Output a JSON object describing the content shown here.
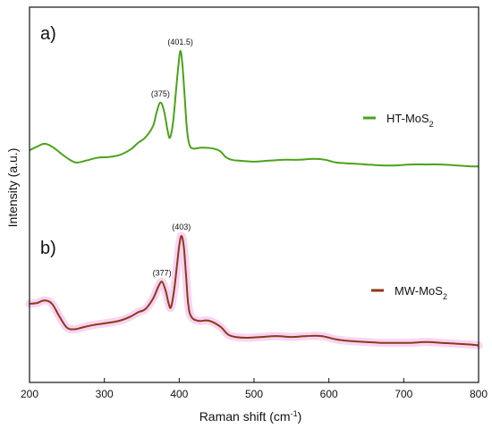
{
  "chart_data": {
    "type": "line",
    "xlabel": "Raman shift (cm",
    "xlabel_sup": "-1",
    "xlabel_close": ")",
    "ylabel": "Intensity (a.u.)",
    "xlim": [
      200,
      800
    ],
    "x_ticks": [
      "200",
      "300",
      "400",
      "500",
      "600",
      "700",
      "800"
    ],
    "y_ticks_labeled": false,
    "panels": [
      {
        "label": "a)",
        "legend_main": "HT-MoS",
        "legend_sub": "2",
        "color": "#4aa31a",
        "shadow": false,
        "peak_labels": [
          {
            "text": "(375)",
            "x": 375
          },
          {
            "text": "(401.5)",
            "x": 401.5
          }
        ],
        "series": {
          "name": "HT-MoS2",
          "points": [
            [
              200,
              0.14
            ],
            [
              210,
              0.18
            ],
            [
              220,
              0.21
            ],
            [
              230,
              0.18
            ],
            [
              240,
              0.12
            ],
            [
              250,
              0.06
            ],
            [
              262,
              0.01
            ],
            [
              275,
              0.03
            ],
            [
              290,
              0.06
            ],
            [
              305,
              0.07
            ],
            [
              320,
              0.09
            ],
            [
              335,
              0.15
            ],
            [
              345,
              0.22
            ],
            [
              355,
              0.28
            ],
            [
              365,
              0.4
            ],
            [
              370,
              0.55
            ],
            [
              375,
              0.65
            ],
            [
              380,
              0.55
            ],
            [
              385,
              0.33
            ],
            [
              388,
              0.28
            ],
            [
              392,
              0.45
            ],
            [
              396,
              0.8
            ],
            [
              399,
              1.05
            ],
            [
              401.5,
              1.2
            ],
            [
              404,
              1.08
            ],
            [
              407,
              0.75
            ],
            [
              410,
              0.4
            ],
            [
              413,
              0.22
            ],
            [
              418,
              0.16
            ],
            [
              430,
              0.17
            ],
            [
              445,
              0.16
            ],
            [
              455,
              0.13
            ],
            [
              462,
              0.07
            ],
            [
              470,
              0.04
            ],
            [
              480,
              0.03
            ],
            [
              500,
              0.02
            ],
            [
              520,
              0.03
            ],
            [
              540,
              0.04
            ],
            [
              560,
              0.04
            ],
            [
              580,
              0.05
            ],
            [
              595,
              0.04
            ],
            [
              610,
              0.01
            ],
            [
              630,
              0.0
            ],
            [
              650,
              -0.01
            ],
            [
              670,
              -0.02
            ],
            [
              690,
              -0.02
            ],
            [
              710,
              -0.01
            ],
            [
              730,
              -0.01
            ],
            [
              750,
              -0.01
            ],
            [
              770,
              -0.02
            ],
            [
              790,
              -0.03
            ],
            [
              800,
              -0.03
            ]
          ]
        }
      },
      {
        "label": "b)",
        "legend_main": "MW-MoS",
        "legend_sub": "2",
        "color": "#8b3a1a",
        "shadow": true,
        "peak_labels": [
          {
            "text": "(377)",
            "x": 377
          },
          {
            "text": "(403)",
            "x": 403
          }
        ],
        "series": {
          "name": "MW-MoS2",
          "points": [
            [
              200,
              0.4
            ],
            [
              210,
              0.41
            ],
            [
              220,
              0.44
            ],
            [
              230,
              0.4
            ],
            [
              240,
              0.25
            ],
            [
              250,
              0.12
            ],
            [
              260,
              0.1
            ],
            [
              270,
              0.12
            ],
            [
              285,
              0.15
            ],
            [
              300,
              0.17
            ],
            [
              320,
              0.2
            ],
            [
              335,
              0.25
            ],
            [
              345,
              0.3
            ],
            [
              355,
              0.34
            ],
            [
              365,
              0.46
            ],
            [
              372,
              0.6
            ],
            [
              377,
              0.66
            ],
            [
              382,
              0.55
            ],
            [
              386,
              0.4
            ],
            [
              389,
              0.36
            ],
            [
              393,
              0.55
            ],
            [
              397,
              0.85
            ],
            [
              400,
              1.08
            ],
            [
              403,
              1.2
            ],
            [
              406,
              1.08
            ],
            [
              409,
              0.75
            ],
            [
              412,
              0.4
            ],
            [
              416,
              0.25
            ],
            [
              425,
              0.2
            ],
            [
              440,
              0.2
            ],
            [
              455,
              0.13
            ],
            [
              465,
              0.04
            ],
            [
              475,
              0.01
            ],
            [
              490,
              0.0
            ],
            [
              510,
              0.01
            ],
            [
              530,
              0.02
            ],
            [
              550,
              0.01
            ],
            [
              570,
              0.02
            ],
            [
              590,
              0.02
            ],
            [
              610,
              -0.02
            ],
            [
              630,
              -0.04
            ],
            [
              650,
              -0.05
            ],
            [
              670,
              -0.06
            ],
            [
              690,
              -0.06
            ],
            [
              710,
              -0.06
            ],
            [
              730,
              -0.05
            ],
            [
              750,
              -0.06
            ],
            [
              770,
              -0.07
            ],
            [
              790,
              -0.08
            ],
            [
              800,
              -0.09
            ]
          ]
        }
      }
    ]
  }
}
